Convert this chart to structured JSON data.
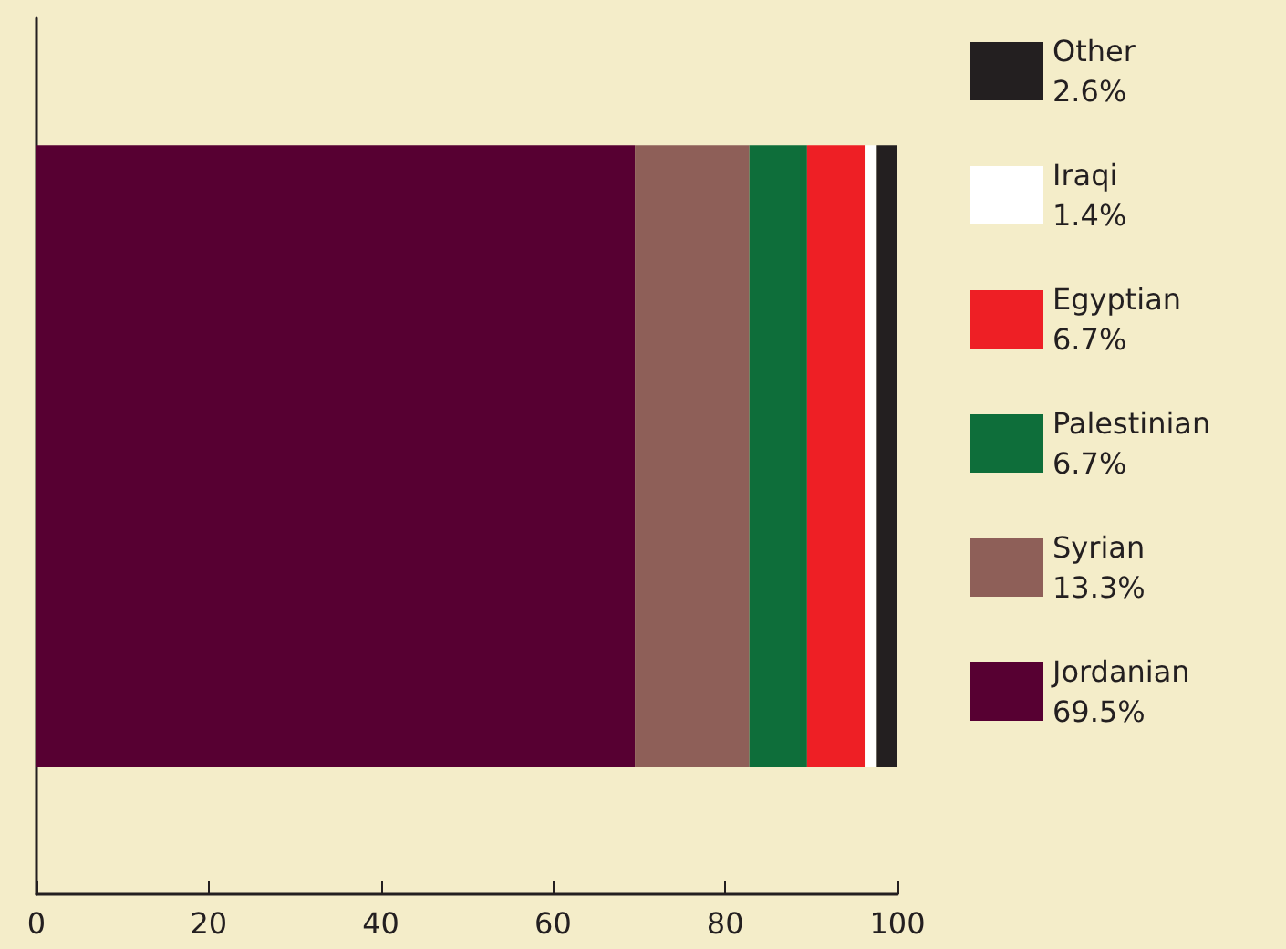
{
  "chart_data": {
    "type": "bar",
    "orientation": "horizontal",
    "stacked": true,
    "categories": [
      null
    ],
    "series": [
      {
        "name": "Jordanian 69.5%",
        "color": "#570032",
        "values": [
          69.5
        ]
      },
      {
        "name": "Syrian 13.3%",
        "color": "#8e5f58",
        "values": [
          13.3
        ]
      },
      {
        "name": "Palestinian 6.7%",
        "color": "#0e6e3a",
        "values": [
          6.7
        ]
      },
      {
        "name": "Egyptian 6.7%",
        "color": "#ee1f25",
        "values": [
          6.7
        ]
      },
      {
        "name": "Iraqi 1.4%",
        "color": "#ffffff",
        "values": [
          1.4
        ]
      },
      {
        "name": "Other 2.6%",
        "color": "#231f20",
        "values": [
          2.6
        ]
      }
    ],
    "xlim": [
      0,
      100
    ],
    "xticks": [
      0,
      20,
      40,
      60,
      80,
      100
    ],
    "grid": false,
    "legend": "right"
  }
}
